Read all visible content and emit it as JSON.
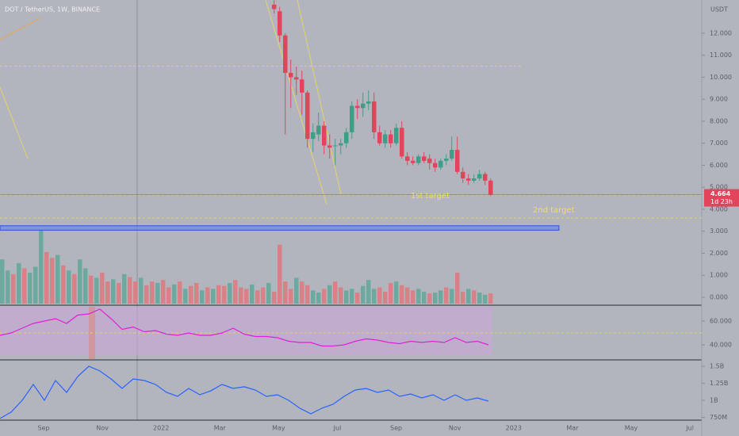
{
  "chart_data": [
    {
      "type": "candlestick",
      "title": "DOT / TetherUS, 1W, BINANCE",
      "axis_unit": "USDT",
      "ylim": [
        -0.36,
        13.51
      ],
      "yticks": [
        {
          "value": 12,
          "label": "12.000"
        },
        {
          "value": 11,
          "label": "11.000"
        },
        {
          "value": 10,
          "label": "10.000"
        },
        {
          "value": 9,
          "label": "9.000"
        },
        {
          "value": 8,
          "label": "8.000"
        },
        {
          "value": 7,
          "label": "7.000"
        },
        {
          "value": 6,
          "label": "6.000"
        },
        {
          "value": 5,
          "label": "5.000"
        },
        {
          "value": 4,
          "label": "4.000"
        },
        {
          "value": 3,
          "label": "3.000"
        },
        {
          "value": 2,
          "label": "2.000"
        },
        {
          "value": 1,
          "label": "1.000"
        },
        {
          "value": 0,
          "label": "0.000"
        }
      ],
      "x_axis_labels": [
        "Sep",
        "Nov",
        "2022",
        "Mar",
        "May",
        "Jul",
        "Sep",
        "Nov",
        "2023",
        "Mar",
        "May",
        "Jul"
      ],
      "up_color": "#3e9e86",
      "down_color": "#e2445c",
      "candles": [
        {
          "open": 13.3,
          "high": 13.5,
          "low": 12.9,
          "close": 13.1
        },
        {
          "open": 13.0,
          "high": 13.2,
          "low": 11.6,
          "close": 11.9
        },
        {
          "open": 11.9,
          "high": 12.0,
          "low": 7.4,
          "close": 10.2
        },
        {
          "open": 10.2,
          "high": 10.8,
          "low": 8.6,
          "close": 10.0
        },
        {
          "open": 10.0,
          "high": 10.5,
          "low": 9.2,
          "close": 9.9
        },
        {
          "open": 9.9,
          "high": 10.3,
          "low": 8.3,
          "close": 9.3
        },
        {
          "open": 9.3,
          "high": 9.4,
          "low": 6.8,
          "close": 7.2
        },
        {
          "open": 7.2,
          "high": 7.9,
          "low": 6.6,
          "close": 7.5
        },
        {
          "open": 7.4,
          "high": 8.4,
          "low": 7.1,
          "close": 7.8
        },
        {
          "open": 7.8,
          "high": 8.0,
          "low": 6.5,
          "close": 6.9
        },
        {
          "open": 6.9,
          "high": 7.4,
          "low": 6.3,
          "close": 6.8
        },
        {
          "open": 6.9,
          "high": 7.2,
          "low": 6.0,
          "close": 6.9
        },
        {
          "open": 6.9,
          "high": 7.2,
          "low": 6.5,
          "close": 7.0
        },
        {
          "open": 7.0,
          "high": 7.7,
          "low": 6.8,
          "close": 7.5
        },
        {
          "open": 7.5,
          "high": 8.9,
          "low": 7.2,
          "close": 8.7
        },
        {
          "open": 8.7,
          "high": 9.0,
          "low": 8.1,
          "close": 8.6
        },
        {
          "open": 8.6,
          "high": 9.3,
          "low": 8.2,
          "close": 8.8
        },
        {
          "open": 8.8,
          "high": 9.4,
          "low": 8.5,
          "close": 8.9
        },
        {
          "open": 8.9,
          "high": 9.3,
          "low": 7.2,
          "close": 7.5
        },
        {
          "open": 7.5,
          "high": 7.8,
          "low": 6.9,
          "close": 7.0
        },
        {
          "open": 7.0,
          "high": 7.6,
          "low": 6.8,
          "close": 7.4
        },
        {
          "open": 7.4,
          "high": 7.6,
          "low": 6.8,
          "close": 7.0
        },
        {
          "open": 7.0,
          "high": 7.9,
          "low": 6.9,
          "close": 7.7
        },
        {
          "open": 7.7,
          "high": 8.0,
          "low": 6.3,
          "close": 6.4
        },
        {
          "open": 6.4,
          "high": 6.6,
          "low": 6.0,
          "close": 6.2
        },
        {
          "open": 6.2,
          "high": 6.4,
          "low": 6.0,
          "close": 6.1
        },
        {
          "open": 6.1,
          "high": 6.5,
          "low": 6.0,
          "close": 6.4
        },
        {
          "open": 6.4,
          "high": 6.6,
          "low": 6.1,
          "close": 6.2
        },
        {
          "open": 6.3,
          "high": 6.5,
          "low": 5.8,
          "close": 6.1
        },
        {
          "open": 6.1,
          "high": 6.3,
          "low": 5.7,
          "close": 5.9
        },
        {
          "open": 5.9,
          "high": 6.3,
          "low": 5.8,
          "close": 6.2
        },
        {
          "open": 6.2,
          "high": 6.5,
          "low": 6.0,
          "close": 6.3
        },
        {
          "open": 6.3,
          "high": 7.3,
          "low": 6.2,
          "close": 6.7
        },
        {
          "open": 6.7,
          "high": 7.3,
          "low": 5.6,
          "close": 5.7
        },
        {
          "open": 5.7,
          "high": 5.9,
          "low": 5.2,
          "close": 5.4
        },
        {
          "open": 5.4,
          "high": 5.6,
          "low": 5.1,
          "close": 5.3
        },
        {
          "open": 5.3,
          "high": 5.6,
          "low": 5.2,
          "close": 5.4
        },
        {
          "open": 5.4,
          "high": 5.8,
          "low": 5.3,
          "close": 5.6
        },
        {
          "open": 5.6,
          "high": 5.7,
          "low": 5.1,
          "close": 5.3
        },
        {
          "open": 5.3,
          "high": 5.4,
          "low": 4.6,
          "close": 4.664
        }
      ],
      "last_price": 4.664,
      "countdown": "1d 23h",
      "levels": [
        10.5,
        4.65,
        3.6
      ],
      "zone": [
        3.05,
        3.25
      ],
      "annotations": [
        "1st target",
        "2nd target"
      ],
      "vlim": [
        0,
        100
      ],
      "volume": [
        60,
        45,
        40,
        55,
        48,
        42,
        50,
        100,
        70,
        62,
        66,
        52,
        45,
        40,
        60,
        48,
        38,
        35,
        42,
        30,
        33,
        28,
        40,
        36,
        30,
        35,
        25,
        30,
        28,
        32,
        22,
        26,
        30,
        20,
        24,
        28,
        18,
        22,
        20,
        25,
        24,
        28,
        32,
        22,
        20,
        26,
        18,
        22,
        28,
        16,
        80,
        30,
        20,
        35,
        30,
        25,
        18,
        15,
        20,
        25,
        30,
        22,
        18,
        20,
        15,
        24,
        32,
        20,
        22,
        16,
        28,
        30,
        25,
        22,
        18,
        20,
        16,
        14,
        15,
        18,
        22,
        20,
        42,
        16,
        20,
        18,
        15,
        12,
        14
      ],
      "volume_up": [
        1,
        1,
        0,
        1,
        0,
        1,
        1,
        1,
        0,
        0,
        1,
        0,
        1,
        0,
        1,
        1,
        0,
        1,
        0,
        0,
        1,
        0,
        1,
        0,
        0,
        1,
        0,
        0,
        1,
        0,
        0,
        1,
        0,
        1,
        0,
        0,
        1,
        0,
        1,
        0,
        0,
        1,
        0,
        0,
        0,
        1,
        0,
        0,
        1,
        0,
        0,
        0,
        0,
        1,
        0,
        0,
        1,
        1,
        0,
        1,
        0,
        0,
        1,
        1,
        0,
        1,
        1,
        1,
        0,
        0,
        0,
        1,
        0,
        0,
        0,
        1,
        1,
        0,
        1,
        1,
        0,
        1,
        0,
        0,
        1,
        0,
        1,
        1,
        0
      ]
    },
    {
      "type": "line",
      "color": "#e020d8",
      "ylim": [
        28,
        72
      ],
      "yticks": [
        {
          "value": 60,
          "label": "60.000"
        },
        {
          "value": 40,
          "label": "40.000"
        }
      ],
      "band": [
        31,
        72
      ],
      "midline": 50,
      "values": [
        48,
        50,
        54,
        58,
        60,
        62,
        58,
        65,
        66,
        70,
        62,
        53,
        55,
        51,
        52,
        49,
        48,
        50,
        48,
        48,
        50,
        54,
        49,
        47,
        47,
        46,
        43,
        42,
        42,
        39,
        39,
        40,
        43,
        45,
        44,
        42,
        41,
        43,
        42,
        43,
        42,
        46,
        42,
        43,
        40
      ]
    },
    {
      "type": "line",
      "color": "#2962ff",
      "ylim": [
        709,
        1581
      ],
      "yticks": [
        {
          "value": 1500,
          "label": "1.5B"
        },
        {
          "value": 1250,
          "label": "1.25B"
        },
        {
          "value": 1000,
          "label": "1B"
        },
        {
          "value": 750,
          "label": "750M"
        }
      ],
      "values": [
        733,
        826,
        1000,
        1233,
        1000,
        1290,
        1116,
        1349,
        1500,
        1430,
        1314,
        1174,
        1314,
        1290,
        1233,
        1116,
        1058,
        1174,
        1081,
        1140,
        1233,
        1174,
        1198,
        1151,
        1058,
        1081,
        1000,
        884,
        802,
        884,
        942,
        1058,
        1151,
        1174,
        1116,
        1151,
        1058,
        1093,
        1035,
        1081,
        1000,
        1081,
        1000,
        1035,
        988
      ]
    }
  ]
}
